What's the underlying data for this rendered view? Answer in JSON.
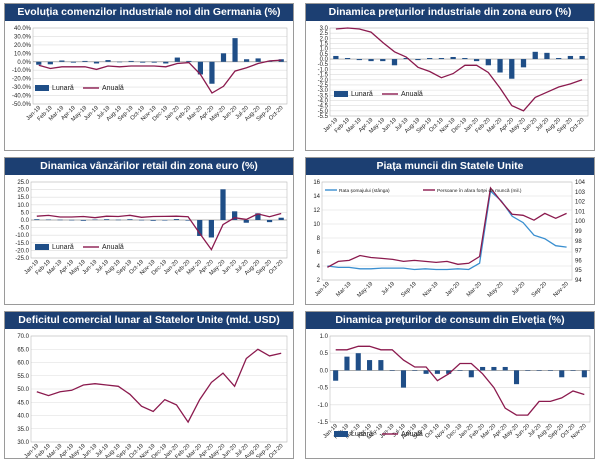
{
  "colors": {
    "title_bg": "#1c3f72",
    "bar": "#1f4e87",
    "line": "#8b1a4e",
    "line_blue": "#3a8fd0",
    "grid": "#dcdcdc"
  },
  "chart_data": [
    {
      "id": "germany",
      "type": "bar+line",
      "title": "Evoluția comenzilor industriale noi din Germania (%)",
      "categories": [
        "Jan-19",
        "Feb-19",
        "Mar-19",
        "Apr-19",
        "May-19",
        "Jun-19",
        "Jul-19",
        "Aug-19",
        "Sep-19",
        "Oct-19",
        "Nov-19",
        "Dec-19",
        "Jan-20",
        "Feb-20",
        "Mar-20",
        "Apr-20",
        "May-20",
        "Jun-20",
        "Jul-20",
        "Aug-20",
        "Sep-20",
        "Oct-20"
      ],
      "tick_labels": [
        "Jan-19",
        "Feb-19",
        "Mar-19",
        "Apr-19",
        "May-19",
        "Jun-19",
        "Jul-19",
        "Aug-19",
        "Sep-19",
        "Oct-19",
        "Nov-19",
        "Dec-19",
        "Jan-20",
        "Feb-20",
        "Mar-20",
        "Apr-20",
        "May-20",
        "Jun-20",
        "Jul-20",
        "Aug-20",
        "Sep-20",
        "Oct-20"
      ],
      "yticks": [
        "40.0%",
        "30.0%",
        "20.0%",
        "10.0%",
        "0.0%",
        "-10.0%",
        "-20.0%",
        "-30.0%",
        "-40.0%",
        "-50.0%"
      ],
      "ylim": [
        -50,
        40
      ],
      "ystep": 10,
      "legend": {
        "bars": "Lunară",
        "line": "Anuală"
      },
      "series": [
        {
          "name": "Lunară",
          "kind": "bar",
          "values": [
            -3.5,
            -3,
            1.5,
            -1,
            1,
            -2,
            2,
            -0.5,
            1,
            -1,
            -1,
            -2,
            5,
            1,
            -15,
            -26,
            10,
            28,
            3,
            4,
            1,
            3
          ]
        },
        {
          "name": "Anuală",
          "kind": "line",
          "values": [
            -4,
            -8,
            -6,
            -6,
            -6,
            -9,
            -5,
            -6,
            -5,
            -5,
            -5,
            -6,
            -2,
            -1,
            -15,
            -37,
            -29,
            -11,
            -7,
            -2,
            1,
            2
          ]
        }
      ]
    },
    {
      "id": "euro-industrial",
      "type": "bar+line",
      "title": "Dinamica prețurilor industriale din zona euro (%)",
      "categories": [
        "Jan-19",
        "Feb-19",
        "Mar-19",
        "Apr-19",
        "May-19",
        "Jun-19",
        "Jul-19",
        "Aug-19",
        "Sep-19",
        "Oct-19",
        "Nov-19",
        "Dec-19",
        "Jan-20",
        "Feb-20",
        "Mar-20",
        "Apr-20",
        "May-20",
        "Jun-20",
        "Jul-20",
        "Aug-20",
        "Sep-20",
        "Oct-20"
      ],
      "tick_labels": [
        "Jan-19",
        "Feb-19",
        "Mar-19",
        "Apr-19",
        "May-19",
        "Jun-19",
        "Jul-19",
        "Aug-19",
        "Sep-19",
        "Oct-19",
        "Nov-19",
        "Dec-19",
        "Jan-20",
        "Feb-20",
        "Mar-20",
        "Apr-20",
        "May-20",
        "Jun-20",
        "Jul-20",
        "Aug-20",
        "Sep-20",
        "Oct-20"
      ],
      "yticks": [
        "3.0",
        "2.5",
        "2.0",
        "1.5",
        "1.0",
        "0.5",
        "0.0",
        "-0.5",
        "-1.0",
        "-1.5",
        "-2.0",
        "-2.5",
        "-3.0",
        "-3.5",
        "-4.0",
        "-4.5",
        "-5.0",
        "-5.5"
      ],
      "ylim": [
        -5.5,
        3
      ],
      "ystep": 0.5,
      "legend": {
        "bars": "Lunară",
        "line": "Anuală"
      },
      "series": [
        {
          "name": "Lunară",
          "kind": "bar",
          "values": [
            0.3,
            0.1,
            -0.1,
            -0.2,
            -0.2,
            -0.6,
            0.1,
            -0.1,
            0.1,
            0.1,
            0.2,
            0.1,
            -0.2,
            -0.6,
            -1.3,
            -1.9,
            -0.8,
            0.7,
            0.6,
            0.1,
            0.3,
            0.3
          ]
        },
        {
          "name": "Anuală",
          "kind": "line",
          "values": [
            2.9,
            3.0,
            2.9,
            2.6,
            1.6,
            0.7,
            0.2,
            -0.8,
            -1.2,
            -1.8,
            -1.4,
            -0.6,
            -0.6,
            -1.3,
            -2.8,
            -4.5,
            -5.0,
            -3.7,
            -3.2,
            -2.7,
            -2.4,
            -2.0
          ]
        }
      ]
    },
    {
      "id": "euro-retail",
      "type": "bar+line",
      "title": "Dinamica vânzărilor retail din zona euro (%)",
      "categories": [
        "Jan-19",
        "Feb-19",
        "Mar-19",
        "Apr-19",
        "May-19",
        "Jun-19",
        "Jul-19",
        "Aug-19",
        "Sep-19",
        "Oct-19",
        "Nov-19",
        "Dec-19",
        "Jan-20",
        "Feb-20",
        "Mar-20",
        "Apr-20",
        "May-20",
        "Jun-20",
        "Jul-20",
        "Aug-20",
        "Sep-20",
        "Oct-20"
      ],
      "tick_labels": [
        "Jan-19",
        "Feb-19",
        "Mar-19",
        "Apr-19",
        "May-19",
        "Jun-19",
        "Jul-19",
        "Aug-19",
        "Sep-19",
        "Oct-19",
        "Nov-19",
        "Dec-19",
        "Jan-20",
        "Feb-20",
        "Mar-20",
        "Apr-20",
        "May-20",
        "Jun-20",
        "Jul-20",
        "Aug-20",
        "Sep-20",
        "Oct-20"
      ],
      "yticks": [
        "25.0",
        "20.0",
        "15.0",
        "10.0",
        "5.0",
        "0.0",
        "-5.0",
        "-10.0",
        "-15.0",
        "-20.0",
        "-25.0"
      ],
      "ylim": [
        -25,
        25
      ],
      "ystep": 5,
      "legend": {
        "bars": "Lunară",
        "line": "Anuală"
      },
      "series": [
        {
          "name": "Lunară",
          "kind": "bar",
          "values": [
            0.5,
            0.3,
            0.2,
            0.1,
            -0.5,
            0.3,
            0.5,
            0.2,
            0.5,
            0.1,
            -0.5,
            -0.3,
            0.6,
            -0.4,
            -10.5,
            -11.5,
            20.2,
            5.7,
            -1.8,
            4.4,
            -1.4,
            1.5
          ]
        },
        {
          "name": "Anuală",
          "kind": "line",
          "values": [
            2.5,
            3,
            2,
            2,
            2.3,
            1.5,
            2.5,
            2.3,
            3.1,
            1.8,
            2.3,
            2.4,
            2.5,
            2.2,
            -8.8,
            -19.5,
            -3,
            1.5,
            0.4,
            4,
            2.2,
            4.3
          ]
        }
      ]
    },
    {
      "id": "us-labor",
      "type": "line",
      "title": "Piața muncii din Statele Unite",
      "categories": [
        "Jan-19",
        "Feb-19",
        "Mar-19",
        "Apr-19",
        "May-19",
        "Jun-19",
        "Jul-19",
        "Aug-19",
        "Sep-19",
        "Oct-19",
        "Nov-19",
        "Dec-19",
        "Jan-20",
        "Feb-20",
        "Mar-20",
        "Apr-20",
        "May-20",
        "Jun-20",
        "Jul-20",
        "Aug-20",
        "Sep-20",
        "Oct-20",
        "Nov-20"
      ],
      "tick_labels": [
        "Jan-19",
        "Mar-19",
        "May-19",
        "Jul-19",
        "Sep-19",
        "Nov-19",
        "Jan-20",
        "Mar-20",
        "May-20",
        "Jul-20",
        "Sep-20",
        "Nov-20"
      ],
      "tick_label_index": [
        0,
        2,
        4,
        6,
        8,
        10,
        12,
        14,
        16,
        18,
        20,
        22
      ],
      "yticks": [
        "16",
        "14",
        "12",
        "10",
        "8",
        "6",
        "4",
        "2"
      ],
      "ylim": [
        2,
        16
      ],
      "ystep": 2,
      "yticks_right": [
        "104",
        "103",
        "102",
        "101",
        "100",
        "99",
        "98",
        "97",
        "96",
        "95",
        "94"
      ],
      "ylim_right": [
        94,
        104
      ],
      "ystep_right": 1,
      "legend": {
        "a": "Rata şomajului (stânga)",
        "b": "Persoane în afara forţei de muncă (mil.)"
      },
      "series": [
        {
          "name": "Rata şomajului (stânga)",
          "kind": "line",
          "axis": "left",
          "values": [
            4.0,
            3.8,
            3.8,
            3.6,
            3.6,
            3.7,
            3.7,
            3.7,
            3.5,
            3.6,
            3.5,
            3.5,
            3.6,
            3.5,
            4.4,
            14.7,
            13.3,
            11.1,
            10.2,
            8.4,
            7.9,
            6.9,
            6.7
          ]
        },
        {
          "name": "Persoane în afara forţei de muncă (mil.)",
          "kind": "line",
          "axis": "right",
          "values": [
            95.3,
            95.9,
            96.0,
            96.5,
            96.3,
            96.2,
            96.1,
            95.9,
            96.0,
            95.9,
            95.8,
            95.9,
            95.6,
            95.7,
            96.4,
            103.4,
            102.0,
            100.7,
            100.6,
            100.1,
            100.8,
            100.3,
            100.8
          ]
        }
      ]
    },
    {
      "id": "us-trade",
      "type": "line",
      "title": "Deficitul comercial lunar al Statelor Unite (mld. USD)",
      "categories": [
        "Jan-19",
        "Feb-19",
        "Mar-19",
        "Apr-19",
        "May-19",
        "Jun-19",
        "Jul-19",
        "Aug-19",
        "Sep-19",
        "Oct-19",
        "Nov-19",
        "Dec-19",
        "Jan-20",
        "Feb-20",
        "Mar-20",
        "Apr-20",
        "May-20",
        "Jun-20",
        "Jul-20",
        "Aug-20",
        "Sep-20",
        "Oct-20"
      ],
      "tick_labels": [
        "Jan-19",
        "Feb-19",
        "Mar-19",
        "Apr-19",
        "May-19",
        "Jun-19",
        "Jul-19",
        "Aug-19",
        "Sep-19",
        "Oct-19",
        "Nov-19",
        "Dec-19",
        "Jan-20",
        "Feb-20",
        "Mar-20",
        "Apr-20",
        "May-20",
        "Jun-20",
        "Jul-20",
        "Aug-20",
        "Sep-20",
        "Oct-20"
      ],
      "yticks": [
        "70.0",
        "65.0",
        "60.0",
        "55.0",
        "50.0",
        "45.0",
        "40.0",
        "35.0",
        "30.0"
      ],
      "ylim": [
        30,
        70
      ],
      "ystep": 5,
      "series": [
        {
          "name": "",
          "kind": "line",
          "values": [
            49,
            47.5,
            49,
            49.5,
            51.5,
            52,
            51.5,
            51,
            48,
            43.5,
            41.5,
            46,
            44,
            37.5,
            46,
            52.5,
            56,
            51,
            61.5,
            65,
            62.5,
            63.5
          ]
        }
      ]
    },
    {
      "id": "swiss-cpi",
      "type": "bar+line",
      "title": "Dinamica prețurilor de consum din Elveția (%)",
      "categories": [
        "Jan-19",
        "Feb-19",
        "Mar-19",
        "Apr-19",
        "May-19",
        "Jun-19",
        "Jul-19",
        "Aug-19",
        "Sep-19",
        "Oct-19",
        "Nov-19",
        "Dec-19",
        "Jan-20",
        "Feb-20",
        "Mar-20",
        "Apr-20",
        "May-20",
        "Jun-20",
        "Jul-20",
        "Aug-20",
        "Sep-20",
        "Oct-20",
        "Nov-20"
      ],
      "tick_labels": [
        "Jan-19",
        "Feb-19",
        "Mar-19",
        "Apr-19",
        "May-19",
        "Jun-19",
        "Jul-19",
        "Aug-19",
        "Sep-19",
        "Oct-19",
        "Nov-19",
        "Dec-19",
        "Jan-20",
        "Feb-20",
        "Mar-20",
        "Apr-20",
        "May-20",
        "Jun-20",
        "Jul-20",
        "Aug-20",
        "Sep-20",
        "Oct-20",
        "Nov-20"
      ],
      "yticks": [
        "1.0",
        "0.5",
        "0.0",
        "-0.5",
        "-1.0",
        "-1.5"
      ],
      "ylim": [
        -1.5,
        1.0
      ],
      "ystep": 0.5,
      "legend": {
        "bars": "Lunară",
        "line": "Anuală"
      },
      "series": [
        {
          "name": "Lunară",
          "kind": "bar",
          "values": [
            -0.3,
            0.4,
            0.5,
            0.3,
            0.3,
            0.0,
            -0.5,
            0.0,
            -0.1,
            -0.1,
            -0.1,
            0.0,
            -0.2,
            0.1,
            0.1,
            0.1,
            -0.4,
            0.0,
            0.0,
            0.0,
            -0.2,
            0.0,
            -0.2
          ]
        },
        {
          "name": "Anuală",
          "kind": "line",
          "values": [
            0.6,
            0.6,
            0.7,
            0.7,
            0.6,
            0.6,
            0.3,
            0.1,
            0.1,
            -0.3,
            -0.1,
            0.2,
            0.2,
            -0.1,
            -0.5,
            -1.1,
            -1.3,
            -1.3,
            -0.9,
            -0.9,
            -0.8,
            -0.6,
            -0.7
          ]
        }
      ]
    }
  ]
}
